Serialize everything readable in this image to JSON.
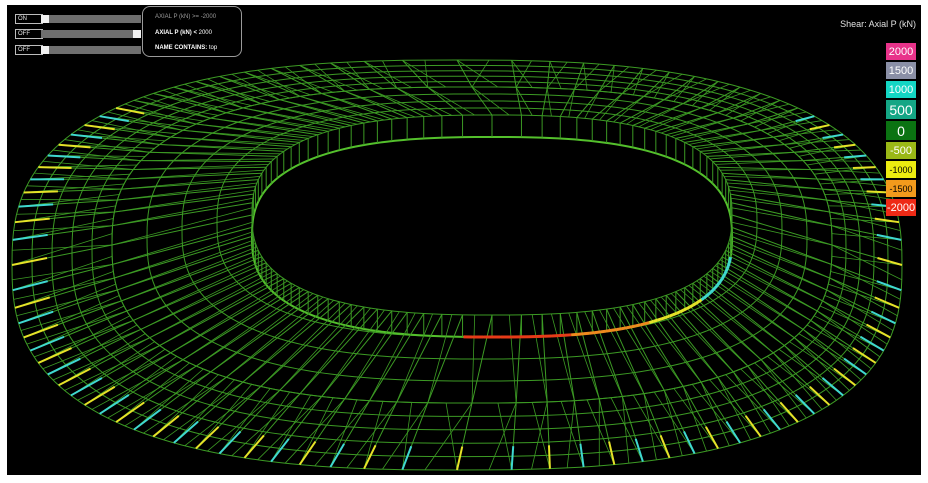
{
  "filters": [
    {
      "toggle": "ON",
      "label": "AXIAL P (kN) >= ",
      "value": "-2000",
      "active": false
    },
    {
      "toggle": "OFF",
      "label": "AXIAL P (kN) < ",
      "value": "2000",
      "active": true
    },
    {
      "toggle": "OFF",
      "label": "NAME CONTAINS: ",
      "value": "top",
      "active": true
    }
  ],
  "legend": {
    "title": "Shear: Axial P (kN)",
    "items": [
      {
        "label": "2000",
        "color": "#e8338a"
      },
      {
        "label": "1500",
        "color": "#8a8fa6"
      },
      {
        "label": "1000",
        "color": "#13d6c4"
      },
      {
        "label": "500",
        "color": "#14a685"
      },
      {
        "label": "0",
        "color": "#0b7312"
      },
      {
        "label": "-500",
        "color": "#9ab816"
      },
      {
        "label": "-1000",
        "color": "#ecec10"
      },
      {
        "label": "-1500",
        "color": "#f29a1c"
      },
      {
        "label": "-2000",
        "color": "#ee2a16"
      }
    ]
  },
  "colors": {
    "frame": "#3c9a24",
    "frame_bright": "#54c02c",
    "cyan": "#3fd8d0",
    "yellow": "#e6e228",
    "orange": "#f08a1e",
    "red": "#e83a18"
  }
}
